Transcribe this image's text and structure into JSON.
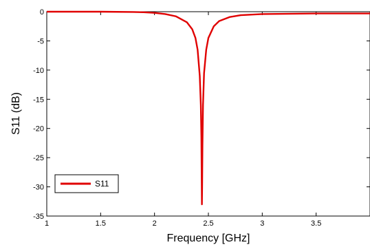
{
  "chart_data": {
    "type": "line",
    "title": "",
    "xlabel": "Frequency [GHz]",
    "ylabel": "S11 (dB)",
    "xlim": [
      1,
      4
    ],
    "ylim": [
      -35,
      0
    ],
    "x_ticks": [
      1,
      1.5,
      2,
      2.5,
      3,
      3.5,
      4
    ],
    "x_tick_labels": [
      "1",
      "1.5",
      "2",
      "2.5",
      "3",
      "3.5",
      ""
    ],
    "y_ticks": [
      0,
      -5,
      -10,
      -15,
      -20,
      -25,
      -30,
      -35
    ],
    "y_tick_labels": [
      "0",
      "-5",
      "-10",
      "-15",
      "-20",
      "-25",
      "-30",
      "-35"
    ],
    "grid": false,
    "legend_position": "bottom-left",
    "series": [
      {
        "name": "S11",
        "color": "#e00000",
        "x": [
          1.0,
          1.5,
          1.8,
          1.9,
          2.0,
          2.1,
          2.2,
          2.3,
          2.35,
          2.38,
          2.4,
          2.42,
          2.43,
          2.435,
          2.44,
          2.442,
          2.445,
          2.45,
          2.46,
          2.48,
          2.5,
          2.55,
          2.6,
          2.7,
          2.8,
          3.0,
          3.5,
          4.0
        ],
        "y": [
          0.0,
          0.0,
          -0.05,
          -0.1,
          -0.2,
          -0.4,
          -0.8,
          -1.8,
          -3.0,
          -4.5,
          -6.5,
          -11.0,
          -16.0,
          -21.5,
          -33.0,
          -30.0,
          -23.0,
          -16.0,
          -10.5,
          -6.5,
          -4.5,
          -2.5,
          -1.6,
          -0.9,
          -0.6,
          -0.4,
          -0.3,
          -0.3
        ]
      }
    ]
  }
}
